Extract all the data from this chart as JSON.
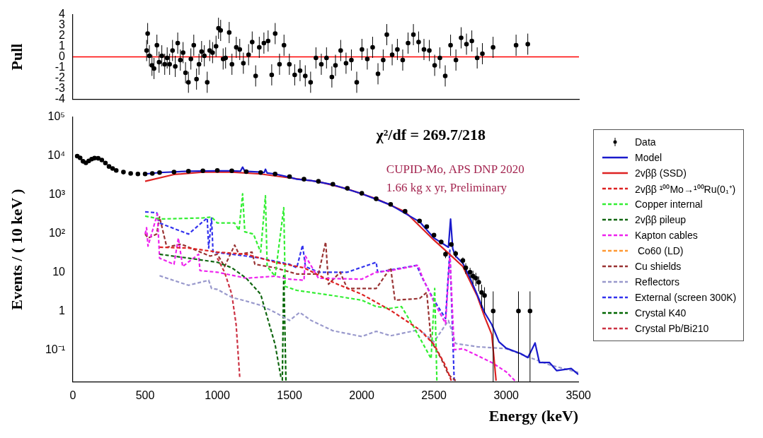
{
  "chart_data": [
    {
      "type": "scatter",
      "ylabel": "Pull",
      "color": "#000000",
      "marker": "circle",
      "grid": false,
      "tick_labels": "y",
      "x": [
        510,
        517,
        529,
        547,
        561,
        581,
        596,
        615,
        635,
        652,
        669,
        689,
        708,
        725,
        743,
        762,
        779,
        799,
        816,
        836,
        855,
        872,
        890,
        909,
        929,
        946,
        966,
        990,
        1007,
        1022,
        1039,
        1056,
        1081,
        1100,
        1130,
        1154,
        1179,
        1215,
        1240,
        1264,
        1289,
        1321,
        1350,
        1375,
        1399,
        1429,
        1460,
        1497,
        1534,
        1571,
        1607,
        1644,
        1681,
        1718,
        1754,
        1791,
        1816,
        1852,
        1889,
        1926,
        1963,
        1999,
        2036,
        2073,
        2110,
        2146,
        2171,
        2208,
        2244,
        2281,
        2318,
        2355,
        2391,
        2428,
        2465,
        2502,
        2538,
        2575,
        2612,
        2649,
        2685,
        2722,
        2759,
        2796,
        2832,
        2906,
        3065,
        3146
      ],
      "values": [
        0.6,
        2.2,
        0.1,
        -0.8,
        -1.1,
        1.1,
        -0.5,
        0.1,
        -0.7,
        -0.1,
        -0.7,
        0.6,
        -0.9,
        1.3,
        -0.3,
        0.4,
        -1.5,
        -2.4,
        -0.2,
        1.1,
        -2.1,
        -0.7,
        0.5,
        0.1,
        -2.4,
        0.6,
        0.4,
        1.0,
        2.7,
        2.5,
        -0.2,
        -0.1,
        2.3,
        -0.7,
        0.9,
        0.7,
        -0.6,
        0.2,
        1.4,
        -1.8,
        0.9,
        1.3,
        1.5,
        -1.7,
        2.2,
        -0.7,
        1.1,
        -0.7,
        -1.7,
        -1.3,
        -1.8,
        -2.4,
        -0.1,
        -0.7,
        -0.1,
        -1.9,
        -0.8,
        0.6,
        -0.6,
        -0.3,
        -2.4,
        0.7,
        -0.2,
        0.9,
        -1.6,
        -0.3,
        2.1,
        0.2,
        0.7,
        -0.3,
        1.3,
        2.1,
        1.4,
        0.7,
        0.6,
        -0.8,
        -0.1,
        -1.8,
        1.1,
        -0.3,
        1.8,
        1.2,
        1.5,
        -0.1,
        0.3,
        0.9,
        1.1,
        1.2
      ],
      "errors": [
        1,
        1,
        1,
        1,
        1,
        1,
        1,
        1,
        1,
        1,
        1,
        1,
        1,
        1,
        1,
        1,
        1,
        1,
        1,
        1,
        1,
        1,
        1,
        1,
        1,
        1,
        1,
        1,
        1,
        1,
        1,
        1,
        1,
        1,
        1,
        1,
        1,
        1,
        1,
        1,
        1,
        1,
        1,
        1,
        1,
        1,
        1,
        1,
        1,
        1,
        1,
        1,
        1,
        1,
        1,
        1,
        1,
        1,
        1,
        1,
        1,
        1,
        1,
        1,
        1,
        1,
        1,
        1,
        1,
        1,
        1,
        1,
        1,
        1,
        1,
        1,
        1,
        1,
        1,
        1,
        1,
        1,
        1,
        1,
        1,
        1,
        1,
        1
      ],
      "xlim": [
        0,
        3500
      ],
      "xticks": [
        0,
        500,
        1000,
        1500,
        2000,
        2500,
        3000,
        3500
      ],
      "ylim": [
        -4,
        4
      ],
      "yticks": [
        -4,
        -3,
        -2,
        -1,
        0,
        1,
        2,
        3,
        4
      ],
      "ref_lines": [
        {
          "axis": "y",
          "value": 0,
          "color": "#ff0000"
        }
      ]
    },
    {
      "type": "line",
      "xlabel": "Energy (keV)",
      "ylabel": "Events / ( 10 keV )",
      "log": "y",
      "grid": false,
      "legend": "right",
      "annotations": [
        "χ²/df = 269.7/218",
        "CUPID-Mo, APS DNP 2020",
        "1.66 kg x yr, Preliminary"
      ],
      "xlim": [
        0,
        3500
      ],
      "xticks": [
        0,
        500,
        1000,
        1500,
        2000,
        2500,
        3000,
        3500
      ],
      "ylim": [
        0.015,
        100000
      ],
      "yticks": [
        {
          "value": 0.1,
          "label": "10⁻¹"
        },
        1,
        10,
        {
          "value": 100,
          "label": "10²"
        },
        {
          "value": 1000,
          "label": "10³"
        },
        {
          "value": 10000,
          "label": "10⁴"
        },
        {
          "value": 100000,
          "label": "10⁵"
        }
      ],
      "series": [
        {
          "name": "Data",
          "type": "scatter",
          "marker": "circle",
          "color": "#000000",
          "x": [
            30,
            50,
            70,
            90,
            110,
            130,
            150,
            175,
            200,
            225,
            250,
            275,
            300,
            350,
            400,
            450,
            500,
            550,
            600,
            700,
            800,
            900,
            1000,
            1100,
            1200,
            1300,
            1400,
            1500,
            1600,
            1700,
            1800,
            1900,
            2000,
            2100,
            2200,
            2300,
            2400,
            2450,
            2500,
            2550,
            2580,
            2620,
            2650,
            2700,
            2720,
            2750,
            2770,
            2790,
            2810,
            2830,
            2850,
            2910,
            3085,
            3165
          ],
          "values": [
            9800,
            8800,
            7200,
            6600,
            7400,
            8200,
            8700,
            8600,
            7800,
            6500,
            5300,
            4700,
            4200,
            3800,
            3500,
            3400,
            3400,
            3500,
            3700,
            3800,
            4000,
            4100,
            4200,
            4100,
            3900,
            3700,
            3400,
            2900,
            2500,
            2200,
            1850,
            1450,
            1080,
            780,
            560,
            370,
            210,
            150,
            90,
            60,
            29,
            52,
            30,
            20,
            13,
            10,
            7.9,
            7,
            5.5,
            3,
            2.5,
            1,
            1,
            1
          ],
          "errors": [
            null,
            null,
            null,
            null,
            null,
            null,
            null,
            null,
            null,
            null,
            null,
            null,
            null,
            null,
            null,
            null,
            null,
            null,
            null,
            null,
            null,
            null,
            null,
            null,
            null,
            null,
            null,
            null,
            null,
            null,
            null,
            null,
            null,
            null,
            null,
            null,
            null,
            null,
            10,
            8,
            6,
            7,
            6,
            4,
            4,
            3,
            3,
            2.6,
            2.3,
            1.8,
            1.6,
            [
              0.015,
              3.2
            ],
            [
              0.015,
              3.2
            ],
            [
              0.015,
              3.2
            ]
          ]
        },
        {
          "name": "Model",
          "line_style": "solid",
          "color": "#1a1acc",
          "x": [
            500,
            600,
            800,
            1000,
            1100,
            1160,
            1175,
            1190,
            1300,
            1325,
            1333,
            1345,
            1400,
            1500,
            1550,
            1650,
            1800,
            2000,
            2200,
            2400,
            2500,
            2600,
            2615,
            2630,
            2650,
            2700,
            2750,
            2800,
            2850,
            2900,
            2950,
            3000,
            3100,
            3150,
            3200,
            3230,
            3300,
            3350,
            3450,
            3500
          ],
          "values": [
            3400,
            3700,
            4000,
            4100,
            4100,
            4000,
            5100,
            4000,
            3800,
            3700,
            4500,
            3600,
            3400,
            2800,
            2500,
            2300,
            1800,
            1050,
            540,
            200,
            76,
            44,
            235,
            40,
            26,
            17,
            7,
            2.6,
            0.92,
            0.45,
            0.16,
            0.11,
            0.08,
            0.063,
            0.15,
            0.047,
            0.047,
            0.029,
            0.033,
            0.023
          ]
        },
        {
          "name": "2vββ (SSD)",
          "line_style": "solid",
          "color": "#dd2222",
          "x": [
            500,
            700,
            900,
            1100,
            1300,
            1500,
            1700,
            1900,
            2100,
            2300,
            2500,
            2600,
            2700,
            2800,
            2850,
            2900,
            2930
          ],
          "values": [
            2200,
            3300,
            3800,
            3800,
            3400,
            2700,
            2150,
            1400,
            780,
            360,
            67,
            31,
            14,
            2.4,
            0.72,
            0.25,
            0.016
          ]
        },
        {
          "name": "2vββ ¹⁰⁰Mo→¹⁰⁰Ru(0₁⁺)",
          "line_style": "dashed",
          "color": "#dd2222",
          "x": [
            600,
            800,
            1000,
            1200,
            1400,
            1600,
            1800,
            2000,
            2200,
            2400,
            2500,
            2580,
            2620
          ],
          "values": [
            44,
            42,
            33,
            29,
            18,
            13,
            5.5,
            2.7,
            1.04,
            0.33,
            0.137,
            0.039,
            0.016
          ]
        },
        {
          "name": "Copper internal",
          "line_style": "dashed",
          "color": "#33ee33",
          "x": [
            500,
            600,
            900,
            960,
            1000,
            1120,
            1150,
            1175,
            1190,
            1250,
            1300,
            1333,
            1345,
            1400,
            1460,
            1470,
            1550,
            1800,
            2000,
            2100,
            2200,
            2275,
            2350,
            2450,
            2480,
            2505,
            2520
          ],
          "values": [
            280,
            235,
            250,
            265,
            185,
            185,
            120,
            1050,
            110,
            96,
            33,
            930,
            14,
            7.9,
            460,
            4.3,
            3.4,
            2.5,
            1.9,
            1.3,
            1.17,
            1.3,
            0.45,
            0.095,
            0.059,
            3.8,
            0.016
          ]
        },
        {
          "name": "2vββ pileup",
          "line_style": "dashed",
          "color": "#116611",
          "x": [
            600,
            800,
            1000,
            1100,
            1200,
            1300,
            1400,
            1440
          ],
          "values": [
            29,
            23,
            18,
            13,
            7,
            2.7,
            0.137,
            0.02
          ]
        },
        {
          "name": "Kapton cables",
          "line_style": "dashed",
          "color": "#ee22ee",
          "x": [
            500,
            510,
            520,
            585,
            600,
            700,
            730,
            760,
            870,
            880,
            1000,
            1200,
            1400,
            1500,
            1600,
            1610,
            1700,
            2000,
            2100,
            2200,
            2390,
            2420,
            2500,
            2580,
            2610,
            2640,
            2700,
            2800,
            2900,
            3000,
            3060
          ],
          "values": [
            96,
            140,
            47,
            320,
            23,
            16,
            76,
            14,
            29,
            11,
            10,
            7,
            7.9,
            6.6,
            6.2,
            26,
            7,
            6.6,
            10,
            11,
            15,
            7.4,
            1.7,
            0.48,
            29,
            0.1,
            0.107,
            0.071,
            0.047,
            0.027,
            0.016
          ]
        },
        {
          "name": " Co60 (LD)",
          "line_style": "dashed",
          "color": "#ff9933"
        },
        {
          "name": "Cu shields",
          "line_style": "dashed",
          "color": "#993333",
          "x": [
            500,
            520,
            580,
            600,
            650,
            750,
            850,
            950,
            1000,
            1050,
            1120,
            1150,
            1240,
            1260,
            1400,
            1550,
            1700,
            1750,
            1770,
            1850,
            1900,
            2100,
            2200,
            2230,
            2400,
            2450,
            2480,
            2550,
            2600,
            2650
          ],
          "values": [
            96,
            76,
            96,
            265,
            44,
            53,
            37,
            26,
            29,
            14,
            50,
            29,
            33,
            16,
            13,
            9,
            9,
            60,
            4.9,
            10,
            3.8,
            3.8,
            13,
            1.9,
            2.1,
            3,
            0.17,
            0.059,
            0.023,
            0.016
          ]
        },
        {
          "name": "Reflectors",
          "line_style": "dashed",
          "color": "#9999cc",
          "x": [
            600,
            800,
            940,
            960,
            1000,
            1100,
            1200,
            1300,
            1400,
            1500,
            1570,
            1650,
            1800,
            2000,
            2100,
            2200,
            2400,
            2500,
            2600,
            2650,
            2800,
            3000,
            3150,
            3300,
            3500
          ],
          "values": [
            8.1,
            4.6,
            6.2,
            3.8,
            3.6,
            2.25,
            1.8,
            1.4,
            0.92,
            0.57,
            0.92,
            0.57,
            0.31,
            0.22,
            0.3,
            0.23,
            0.33,
            0.16,
            0.57,
            0.145,
            0.12,
            0.107,
            0.066,
            0.041,
            0.026
          ]
        },
        {
          "name": "External (screen 300K)",
          "line_style": "dashed",
          "color": "#3333ee",
          "x": [
            500,
            580,
            600,
            800,
            930,
            940,
            960,
            970,
            1100,
            1200,
            1300,
            1500,
            1550,
            1590,
            1610,
            1700,
            1900,
            2100,
            2110,
            2380,
            2420,
            2500,
            2580,
            2610,
            2640
          ],
          "values": [
            360,
            340,
            185,
            96,
            250,
            42,
            250,
            33,
            29,
            26,
            23,
            16,
            13,
            50,
            14,
            10,
            10,
            18,
            10,
            15,
            7,
            1.9,
            0.64,
            37,
            0.016
          ]
        },
        {
          "name": "Crystal K40",
          "line_style": "dashed",
          "color": "#006600",
          "x": [
            1450,
            1460,
            1475
          ],
          "values": [
            0.016,
            8.9,
            0.016
          ]
        },
        {
          "name": "Crystal Pb/Bi210",
          "line_style": "dashed",
          "color": "#cc3344",
          "x": [
            1000,
            1050,
            1100,
            1130,
            1155
          ],
          "values": [
            23,
            10,
            2.7,
            0.45,
            0.02
          ]
        }
      ]
    }
  ]
}
